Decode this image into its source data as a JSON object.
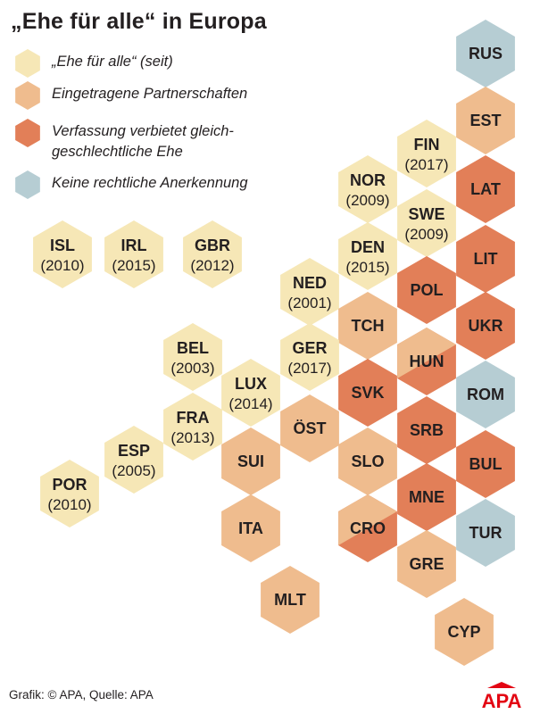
{
  "title": "„Ehe für alle“ in Europa",
  "colors": {
    "marriage": "#f6e7b6",
    "partnership": "#efbc8e",
    "ban": "#e27f58",
    "none": "#b6cdd3",
    "logo_red": "#e30613"
  },
  "legend": [
    {
      "category": "marriage",
      "lines": [
        "„Ehe für alle“ (seit)"
      ]
    },
    {
      "category": "partnership",
      "lines": [
        "Eingetragene Partnerschaften"
      ]
    },
    {
      "category": "ban",
      "lines": [
        "Verfassung verbietet gleich-",
        "geschlechtliche Ehe"
      ]
    },
    {
      "category": "none",
      "lines": [
        "Keine rechtliche Anerkennung"
      ]
    }
  ],
  "countries": [
    {
      "code": "RUS",
      "status": "none"
    },
    {
      "code": "EST",
      "status": "partnership"
    },
    {
      "code": "FIN",
      "year": "(2017)",
      "status": "marriage"
    },
    {
      "code": "LAT",
      "status": "ban"
    },
    {
      "code": "NOR",
      "year": "(2009)",
      "status": "marriage"
    },
    {
      "code": "SWE",
      "year": "(2009)",
      "status": "marriage"
    },
    {
      "code": "ISL",
      "year": "(2010)",
      "status": "marriage"
    },
    {
      "code": "IRL",
      "year": "(2015)",
      "status": "marriage"
    },
    {
      "code": "GBR",
      "year": "(2012)",
      "status": "marriage"
    },
    {
      "code": "DEN",
      "year": "(2015)",
      "status": "marriage"
    },
    {
      "code": "LIT",
      "status": "ban"
    },
    {
      "code": "NED",
      "year": "(2001)",
      "status": "marriage"
    },
    {
      "code": "POL",
      "status": "ban"
    },
    {
      "code": "TCH",
      "status": "partnership"
    },
    {
      "code": "UKR",
      "status": "ban"
    },
    {
      "code": "BEL",
      "year": "(2003)",
      "status": "marriage"
    },
    {
      "code": "GER",
      "year": "(2017)",
      "status": "marriage"
    },
    {
      "code": "HUN",
      "status": "partnership/ban"
    },
    {
      "code": "LUX",
      "year": "(2014)",
      "status": "marriage"
    },
    {
      "code": "SVK",
      "status": "ban"
    },
    {
      "code": "ROM",
      "status": "none"
    },
    {
      "code": "FRA",
      "year": "(2013)",
      "status": "marriage"
    },
    {
      "code": "ÖST",
      "status": "partnership"
    },
    {
      "code": "SRB",
      "status": "ban"
    },
    {
      "code": "ESP",
      "year": "(2005)",
      "status": "marriage"
    },
    {
      "code": "SUI",
      "status": "partnership"
    },
    {
      "code": "SLO",
      "status": "partnership"
    },
    {
      "code": "BUL",
      "status": "ban"
    },
    {
      "code": "POR",
      "year": "(2010)",
      "status": "marriage"
    },
    {
      "code": "MNE",
      "status": "ban"
    },
    {
      "code": "ITA",
      "status": "partnership"
    },
    {
      "code": "CRO",
      "status": "partnership/ban"
    },
    {
      "code": "TUR",
      "status": "none"
    },
    {
      "code": "GRE",
      "status": "partnership"
    },
    {
      "code": "MLT",
      "status": "partnership"
    },
    {
      "code": "CYP",
      "status": "partnership"
    }
  ],
  "footer": "Grafik: © APA, Quelle: APA",
  "logo_text": "APA"
}
